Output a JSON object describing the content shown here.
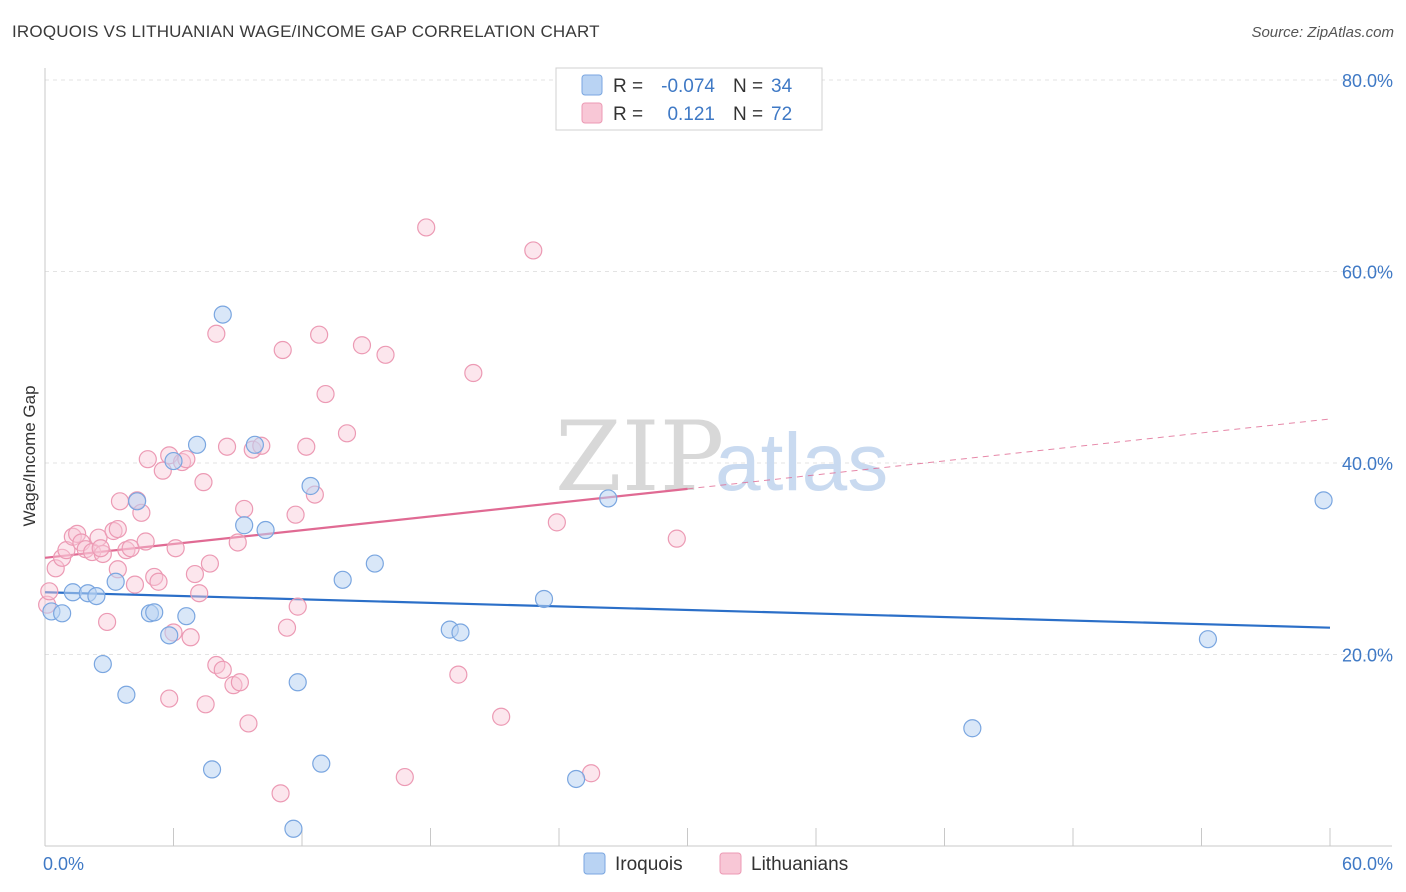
{
  "title": "IROQUOIS VS LITHUANIAN WAGE/INCOME GAP CORRELATION CHART",
  "source": "Source: ZipAtlas.com",
  "watermark": {
    "zip": "ZIP",
    "atlas": "atlas"
  },
  "colors": {
    "iroquois_fill": "#b9d3f3",
    "iroquois_stroke": "#7aa6e0",
    "iroquois_line": "#2b6fc8",
    "lithuanian_fill": "#f8c7d6",
    "lithuanian_stroke": "#ec9ab4",
    "lithuanian_line": "#e06a93"
  },
  "legend": {
    "rows": [
      {
        "r_label": "R =",
        "r_value": "-0.074",
        "n_label": "N =",
        "n_value": "34"
      },
      {
        "r_label": "R =",
        "r_value": "0.121",
        "n_label": "N =",
        "n_value": "72"
      }
    ]
  },
  "chart_data": {
    "type": "scatter",
    "title": "IROQUOIS VS LITHUANIAN WAGE/INCOME GAP CORRELATION CHART",
    "xlabel": "",
    "ylabel": "Wage/Income Gap",
    "xlim": [
      0,
      60
    ],
    "ylim": [
      0,
      80
    ],
    "x_tick_labels": [
      "0.0%",
      "60.0%"
    ],
    "y_ticks": [
      20,
      40,
      60,
      80
    ],
    "y_tick_labels": [
      "20.0%",
      "40.0%",
      "60.0%",
      "80.0%"
    ],
    "grid": true,
    "legend_position": "top-center",
    "series": [
      {
        "name": "Iroquois",
        "r": -0.074,
        "n": 34,
        "trend": {
          "x0": 0,
          "y0": 26.5,
          "x1": 60,
          "y1": 22.8
        },
        "points": [
          [
            0.3,
            24.5
          ],
          [
            0.8,
            24.3
          ],
          [
            1.3,
            26.5
          ],
          [
            2.0,
            26.4
          ],
          [
            2.4,
            26.1
          ],
          [
            2.7,
            19.0
          ],
          [
            3.3,
            27.6
          ],
          [
            3.8,
            15.8
          ],
          [
            4.3,
            36.0
          ],
          [
            4.9,
            24.3
          ],
          [
            5.1,
            24.4
          ],
          [
            5.8,
            22.0
          ],
          [
            6.0,
            40.2
          ],
          [
            6.6,
            24.0
          ],
          [
            7.1,
            41.9
          ],
          [
            7.8,
            8.0
          ],
          [
            8.3,
            55.5
          ],
          [
            9.3,
            33.5
          ],
          [
            9.8,
            41.9
          ],
          [
            10.3,
            33.0
          ],
          [
            11.6,
            1.8
          ],
          [
            11.8,
            17.1
          ],
          [
            12.4,
            37.6
          ],
          [
            12.9,
            8.6
          ],
          [
            13.9,
            27.8
          ],
          [
            15.4,
            29.5
          ],
          [
            18.9,
            22.6
          ],
          [
            19.4,
            22.3
          ],
          [
            23.3,
            25.8
          ],
          [
            24.8,
            7.0
          ],
          [
            26.3,
            36.3
          ],
          [
            43.3,
            12.3
          ],
          [
            54.3,
            21.6
          ],
          [
            59.7,
            36.1
          ]
        ]
      },
      {
        "name": "Lithuanians",
        "r": 0.121,
        "n": 72,
        "trend": {
          "x0": 0,
          "y0": 30.1,
          "x1": 30,
          "y1": 37.3
        },
        "trend_extension": {
          "x0": 30,
          "y0": 37.3,
          "x1": 60,
          "y1": 44.6
        },
        "points": [
          [
            0.1,
            25.2
          ],
          [
            0.2,
            26.6
          ],
          [
            0.5,
            29.0
          ],
          [
            0.8,
            30.1
          ],
          [
            1.0,
            30.9
          ],
          [
            1.3,
            32.3
          ],
          [
            1.5,
            32.6
          ],
          [
            1.7,
            31.7
          ],
          [
            1.9,
            31.0
          ],
          [
            2.2,
            30.7
          ],
          [
            2.5,
            32.2
          ],
          [
            2.7,
            30.5
          ],
          [
            2.6,
            31.1
          ],
          [
            2.9,
            23.4
          ],
          [
            3.2,
            32.9
          ],
          [
            3.4,
            33.1
          ],
          [
            3.4,
            28.9
          ],
          [
            3.5,
            36.0
          ],
          [
            3.8,
            30.9
          ],
          [
            4.0,
            31.1
          ],
          [
            4.2,
            27.3
          ],
          [
            4.3,
            36.1
          ],
          [
            4.5,
            34.8
          ],
          [
            4.7,
            31.8
          ],
          [
            4.8,
            40.4
          ],
          [
            5.1,
            28.1
          ],
          [
            5.3,
            27.6
          ],
          [
            5.5,
            39.2
          ],
          [
            5.8,
            15.4
          ],
          [
            5.8,
            40.8
          ],
          [
            6.0,
            22.3
          ],
          [
            6.1,
            31.1
          ],
          [
            6.4,
            40.1
          ],
          [
            6.6,
            40.4
          ],
          [
            6.8,
            21.8
          ],
          [
            7.0,
            28.4
          ],
          [
            7.2,
            26.4
          ],
          [
            7.4,
            38.0
          ],
          [
            7.5,
            14.8
          ],
          [
            7.7,
            29.5
          ],
          [
            8.0,
            18.9
          ],
          [
            8.0,
            53.5
          ],
          [
            8.3,
            18.4
          ],
          [
            8.5,
            41.7
          ],
          [
            8.8,
            16.8
          ],
          [
            9.0,
            31.7
          ],
          [
            9.1,
            17.1
          ],
          [
            9.3,
            35.2
          ],
          [
            9.5,
            12.8
          ],
          [
            9.7,
            41.4
          ],
          [
            10.1,
            41.8
          ],
          [
            11.0,
            5.5
          ],
          [
            11.1,
            51.8
          ],
          [
            11.3,
            22.8
          ],
          [
            11.7,
            34.6
          ],
          [
            11.8,
            25.0
          ],
          [
            12.2,
            41.7
          ],
          [
            12.6,
            36.7
          ],
          [
            12.8,
            53.4
          ],
          [
            13.1,
            47.2
          ],
          [
            14.1,
            43.1
          ],
          [
            14.8,
            52.3
          ],
          [
            15.9,
            51.3
          ],
          [
            16.8,
            7.2
          ],
          [
            17.8,
            64.6
          ],
          [
            19.3,
            17.9
          ],
          [
            20.0,
            49.4
          ],
          [
            21.3,
            13.5
          ],
          [
            22.8,
            62.2
          ],
          [
            23.9,
            33.8
          ],
          [
            25.5,
            7.6
          ],
          [
            29.5,
            32.1
          ]
        ]
      }
    ]
  },
  "bottom_legend": [
    "Iroquois",
    "Lithuanians"
  ]
}
